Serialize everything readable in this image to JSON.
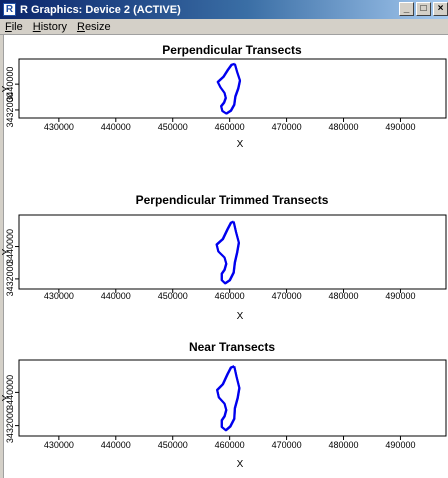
{
  "window": {
    "title": "R Graphics: Device 2 (ACTIVE)",
    "icon": "r-logo-icon",
    "buttons": {
      "minimize": "_",
      "maximize": "□",
      "close": "×"
    }
  },
  "menu": [
    {
      "label": "File",
      "accel": "F",
      "rest": "ile"
    },
    {
      "label": "History",
      "accel": "H",
      "rest": "istory"
    },
    {
      "label": "Resize",
      "accel": "R",
      "rest": "esize"
    }
  ],
  "colors": {
    "series": "#0000ee",
    "titlebar": "#0a246a"
  },
  "chart_data": [
    {
      "type": "line",
      "title": "Perpendicular Transects",
      "xlabel": "X",
      "ylabel": "Y",
      "x_ticks": [
        430000,
        440000,
        450000,
        460000,
        470000,
        480000,
        490000
      ],
      "y_ticks": [
        3432000,
        3440000
      ],
      "series": [
        {
          "points": [
            [
              460900,
              3446300
            ],
            [
              461300,
              3443800
            ],
            [
              461800,
              3441200
            ],
            [
              461500,
              3438700
            ],
            [
              461000,
              3436200
            ],
            [
              460800,
              3433700
            ],
            [
              460200,
              3431800
            ],
            [
              459400,
              3430900
            ],
            [
              458700,
              3431700
            ],
            [
              458500,
              3433200
            ],
            [
              459000,
              3434300
            ],
            [
              459300,
              3435800
            ],
            [
              459100,
              3437300
            ],
            [
              458400,
              3439000
            ],
            [
              457900,
              3440700
            ],
            [
              458900,
              3442300
            ],
            [
              459700,
              3444500
            ],
            [
              460300,
              3446000
            ],
            [
              460900,
              3446300
            ]
          ]
        }
      ]
    },
    {
      "type": "line",
      "title": "Perpendicular Trimmed Transects",
      "xlabel": "X",
      "ylabel": "Y",
      "x_ticks": [
        430000,
        440000,
        450000,
        460000,
        470000,
        480000,
        490000
      ],
      "y_ticks": [
        3432000,
        3440000
      ],
      "series": [
        {
          "points": [
            [
              460700,
              3446200
            ],
            [
              461100,
              3443700
            ],
            [
              461600,
              3441000
            ],
            [
              461300,
              3438600
            ],
            [
              460900,
              3436100
            ],
            [
              460700,
              3433600
            ],
            [
              460000,
              3431700
            ],
            [
              459200,
              3430900
            ],
            [
              458600,
              3431700
            ],
            [
              458600,
              3433300
            ],
            [
              459100,
              3434300
            ],
            [
              459400,
              3435800
            ],
            [
              459100,
              3437300
            ],
            [
              458000,
              3438800
            ],
            [
              457700,
              3440500
            ],
            [
              458800,
              3441900
            ],
            [
              459600,
              3444300
            ],
            [
              460200,
              3445900
            ],
            [
              460700,
              3446200
            ]
          ]
        }
      ]
    },
    {
      "type": "line",
      "title": "Near Transects",
      "xlabel": "X",
      "ylabel": "Y",
      "x_ticks": [
        430000,
        440000,
        450000,
        460000,
        470000,
        480000,
        490000
      ],
      "y_ticks": [
        3432000,
        3440000
      ],
      "series": [
        {
          "points": [
            [
              460800,
              3446300
            ],
            [
              461200,
              3443800
            ],
            [
              461700,
              3441100
            ],
            [
              461400,
              3438700
            ],
            [
              460900,
              3436200
            ],
            [
              460800,
              3433700
            ],
            [
              460100,
              3431800
            ],
            [
              459300,
              3430900
            ],
            [
              458600,
              3431700
            ],
            [
              458600,
              3433300
            ],
            [
              459100,
              3434300
            ],
            [
              459400,
              3435800
            ],
            [
              459100,
              3437300
            ],
            [
              458100,
              3438800
            ],
            [
              457800,
              3440600
            ],
            [
              458800,
              3442000
            ],
            [
              459600,
              3444400
            ],
            [
              460200,
              3446000
            ],
            [
              460800,
              3446300
            ]
          ]
        }
      ]
    }
  ]
}
